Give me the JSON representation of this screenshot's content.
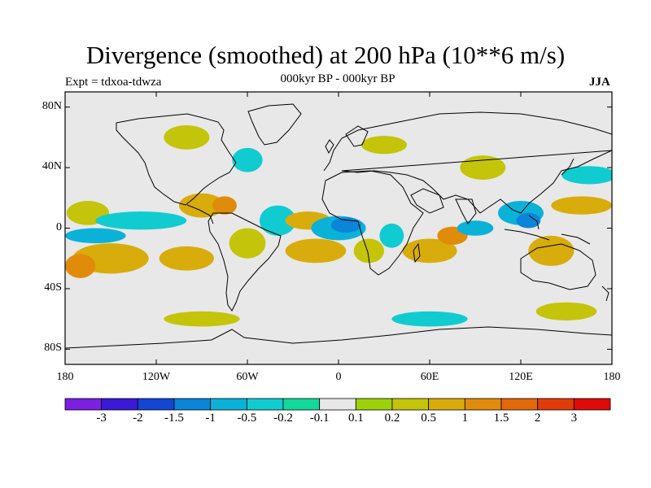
{
  "title": "Divergence (smoothed) at 200 hPa (10**6 m/s)",
  "subtitle": "000kyr BP - 000kyr BP",
  "experiment_label": "Expt = tdxoa-tdwza",
  "season": "JJA",
  "axes": {
    "lat_ticks": [
      {
        "label": "80N",
        "value": 80
      },
      {
        "label": "40N",
        "value": 40
      },
      {
        "label": "0",
        "value": 0
      },
      {
        "label": "40S",
        "value": -40
      },
      {
        "label": "80S",
        "value": -80
      }
    ],
    "lon_ticks": [
      {
        "label": "180",
        "value": -180
      },
      {
        "label": "120W",
        "value": -120
      },
      {
        "label": "60W",
        "value": -60
      },
      {
        "label": "0",
        "value": 0
      },
      {
        "label": "60E",
        "value": 60
      },
      {
        "label": "120E",
        "value": 120
      },
      {
        "label": "180",
        "value": 180
      }
    ],
    "lat_range": [
      -90,
      90
    ],
    "lon_range": [
      -180,
      180
    ]
  },
  "colorbar": {
    "colors": [
      "#7b1fe0",
      "#3a1ad6",
      "#1446d4",
      "#0a85d8",
      "#0ab2d8",
      "#10ccd0",
      "#12d89a",
      "#e8e8e8",
      "#9cd20a",
      "#c4c40a",
      "#d8ac0a",
      "#e08c0a",
      "#e2680a",
      "#e03c0a",
      "#e00a0a"
    ],
    "labels": [
      "-3",
      "-2",
      "-1.5",
      "-1",
      "-0.5",
      "-0.2",
      "-0.1",
      "0.1",
      "0.2",
      "0.5",
      "1",
      "1.5",
      "2",
      "3"
    ]
  },
  "chart_data": {
    "type": "heatmap",
    "title": "Divergence (smoothed) at 200 hPa (10**6 m/s)",
    "subtitle": "000kyr BP - 000kyr BP",
    "xlabel": "",
    "ylabel": "",
    "xlim": [
      -180,
      180
    ],
    "ylim": [
      -90,
      90
    ],
    "projection": "cylindrical equidistant",
    "neutral_color": "#e8e8e8",
    "regions": [
      {
        "lon": -165,
        "lat": 10,
        "rx": 14,
        "ry": 8,
        "level": "0.2"
      },
      {
        "lon": -150,
        "lat": -20,
        "rx": 25,
        "ry": 10,
        "level": "0.5"
      },
      {
        "lon": -170,
        "lat": -25,
        "rx": 10,
        "ry": 8,
        "level": "1"
      },
      {
        "lon": -130,
        "lat": 5,
        "rx": 30,
        "ry": 6,
        "level": "-0.2"
      },
      {
        "lon": -160,
        "lat": -5,
        "rx": 20,
        "ry": 5,
        "level": "-0.5"
      },
      {
        "lon": -100,
        "lat": -20,
        "rx": 18,
        "ry": 8,
        "level": "0.5"
      },
      {
        "lon": -90,
        "lat": 15,
        "rx": 15,
        "ry": 8,
        "level": "0.5"
      },
      {
        "lon": -75,
        "lat": 15,
        "rx": 8,
        "ry": 6,
        "level": "1"
      },
      {
        "lon": -60,
        "lat": -10,
        "rx": 12,
        "ry": 10,
        "level": "0.2"
      },
      {
        "lon": -40,
        "lat": 5,
        "rx": 12,
        "ry": 10,
        "level": "-0.2"
      },
      {
        "lon": -20,
        "lat": 5,
        "rx": 15,
        "ry": 6,
        "level": "0.5"
      },
      {
        "lon": -15,
        "lat": -15,
        "rx": 20,
        "ry": 8,
        "level": "0.5"
      },
      {
        "lon": 0,
        "lat": 0,
        "rx": 18,
        "ry": 8,
        "level": "-0.5"
      },
      {
        "lon": 5,
        "lat": 2,
        "rx": 10,
        "ry": 5,
        "level": "-1"
      },
      {
        "lon": 20,
        "lat": -15,
        "rx": 10,
        "ry": 8,
        "level": "0.2"
      },
      {
        "lon": 35,
        "lat": -5,
        "rx": 8,
        "ry": 8,
        "level": "-0.2"
      },
      {
        "lon": 60,
        "lat": -15,
        "rx": 18,
        "ry": 8,
        "level": "0.5"
      },
      {
        "lon": 75,
        "lat": -5,
        "rx": 10,
        "ry": 6,
        "level": "1"
      },
      {
        "lon": 90,
        "lat": 0,
        "rx": 12,
        "ry": 5,
        "level": "-0.5"
      },
      {
        "lon": 120,
        "lat": 10,
        "rx": 15,
        "ry": 8,
        "level": "-0.5"
      },
      {
        "lon": 125,
        "lat": 5,
        "rx": 8,
        "ry": 5,
        "level": "-1"
      },
      {
        "lon": 140,
        "lat": -15,
        "rx": 15,
        "ry": 10,
        "level": "0.5"
      },
      {
        "lon": 160,
        "lat": 15,
        "rx": 20,
        "ry": 6,
        "level": "0.5"
      },
      {
        "lon": 165,
        "lat": 35,
        "rx": 18,
        "ry": 6,
        "level": "-0.2"
      },
      {
        "lon": 95,
        "lat": 40,
        "rx": 15,
        "ry": 8,
        "level": "0.2"
      },
      {
        "lon": -100,
        "lat": 60,
        "rx": 15,
        "ry": 8,
        "level": "0.2"
      },
      {
        "lon": -60,
        "lat": 45,
        "rx": 10,
        "ry": 8,
        "level": "-0.2"
      },
      {
        "lon": 30,
        "lat": 55,
        "rx": 15,
        "ry": 6,
        "level": "0.2"
      },
      {
        "lon": -90,
        "lat": -60,
        "rx": 25,
        "ry": 5,
        "level": "0.2"
      },
      {
        "lon": 60,
        "lat": -60,
        "rx": 25,
        "ry": 5,
        "level": "-0.2"
      },
      {
        "lon": 150,
        "lat": -55,
        "rx": 20,
        "ry": 6,
        "level": "0.2"
      }
    ]
  }
}
